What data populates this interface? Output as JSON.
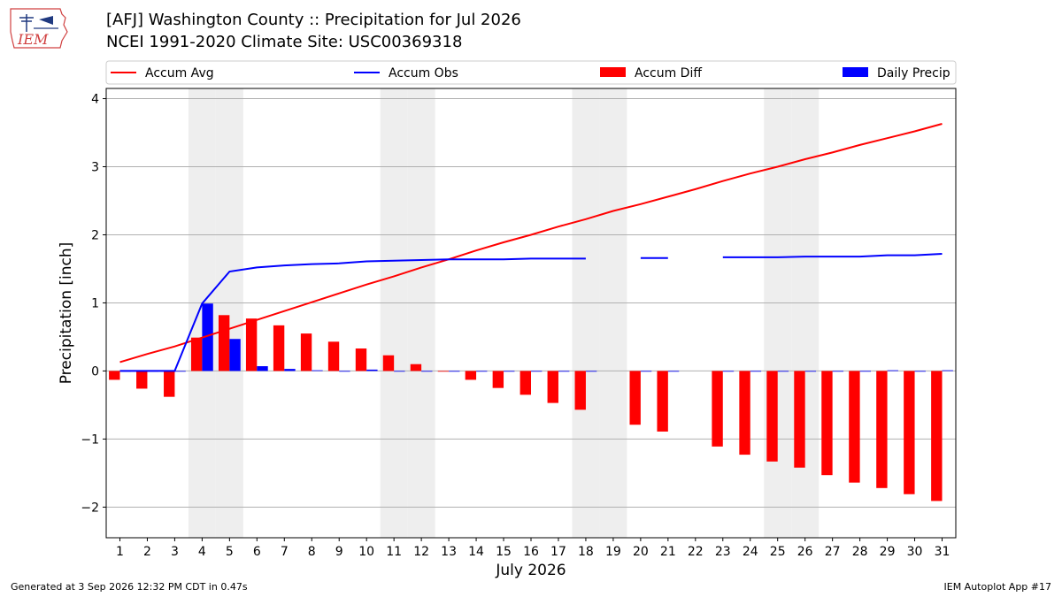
{
  "header": {
    "title_line1": "[AFJ] Washington County :: Precipitation for Jul 2026",
    "title_line2": "NCEI 1991-2020 Climate Site: USC00369318"
  },
  "logo": {
    "text": "IEM",
    "icon": "iem-iowa-logo-icon"
  },
  "footer": {
    "left": "Generated at 3 Sep 2026 12:32 PM CDT in 0.47s",
    "right": "IEM Autoplot App #17"
  },
  "colors": {
    "avg": "#ff0000",
    "obs": "#0000ff",
    "diff": "#ff0000",
    "daily": "#0000ff",
    "weekend": "#eeeeee",
    "grid": "#b0b0b0"
  },
  "chart_data": {
    "type": "bar",
    "xlabel": "July 2026",
    "ylabel": "Precipitation [inch]",
    "ylim": [
      -2.45,
      4.15
    ],
    "yticks": [
      -2,
      -1,
      0,
      1,
      2,
      3,
      4
    ],
    "ytick_labels": [
      "−2",
      "−1",
      "0",
      "1",
      "2",
      "3",
      "4"
    ],
    "xlim": [
      0.5,
      31.5
    ],
    "grid": "horizontal",
    "legend_position": "top",
    "weekend_days": [
      4,
      5,
      11,
      12,
      18,
      19,
      25,
      26
    ],
    "days": [
      1,
      2,
      3,
      4,
      5,
      6,
      7,
      8,
      9,
      10,
      11,
      12,
      13,
      14,
      15,
      16,
      17,
      18,
      19,
      20,
      21,
      22,
      23,
      24,
      25,
      26,
      27,
      28,
      29,
      30,
      31
    ],
    "series": [
      {
        "name": "Accum Avg",
        "kind": "line",
        "values": [
          0.13,
          0.25,
          0.36,
          0.49,
          0.62,
          0.75,
          0.88,
          1.01,
          1.14,
          1.27,
          1.39,
          1.52,
          1.64,
          1.77,
          1.89,
          2.0,
          2.12,
          2.23,
          2.35,
          2.45,
          2.56,
          2.67,
          2.79,
          2.9,
          3.0,
          3.11,
          3.21,
          3.32,
          3.42,
          3.52,
          3.63
        ]
      },
      {
        "name": "Accum Obs",
        "kind": "line",
        "values": [
          0.0,
          0.0,
          0.0,
          0.99,
          1.46,
          1.52,
          1.55,
          1.57,
          1.58,
          1.61,
          1.62,
          1.63,
          1.64,
          1.64,
          1.64,
          1.65,
          1.65,
          1.65,
          null,
          1.66,
          1.66,
          null,
          1.67,
          1.67,
          1.67,
          1.68,
          1.68,
          1.68,
          1.7,
          1.7,
          1.72
        ]
      },
      {
        "name": "Accum Diff",
        "kind": "bar",
        "values": [
          -0.13,
          -0.26,
          -0.38,
          0.49,
          0.82,
          0.77,
          0.67,
          0.55,
          0.43,
          0.33,
          0.23,
          0.1,
          -0.01,
          -0.13,
          -0.25,
          -0.35,
          -0.47,
          -0.57,
          null,
          -0.79,
          -0.89,
          null,
          -1.11,
          -1.23,
          -1.33,
          -1.42,
          -1.53,
          -1.64,
          -1.72,
          -1.81,
          -1.91
        ]
      },
      {
        "name": "Daily Precip",
        "kind": "bar",
        "values": [
          0.0,
          0.0,
          0.0,
          0.99,
          0.47,
          0.07,
          0.03,
          0.01,
          0.0,
          0.02,
          0.0,
          0.0,
          0.0,
          0.0,
          0.0,
          0.0,
          0.0,
          0.0,
          null,
          0.0,
          0.0,
          null,
          0.0,
          0.0,
          0.0,
          0.0,
          0.0,
          0.0,
          0.01,
          0.0,
          0.01
        ]
      }
    ]
  }
}
